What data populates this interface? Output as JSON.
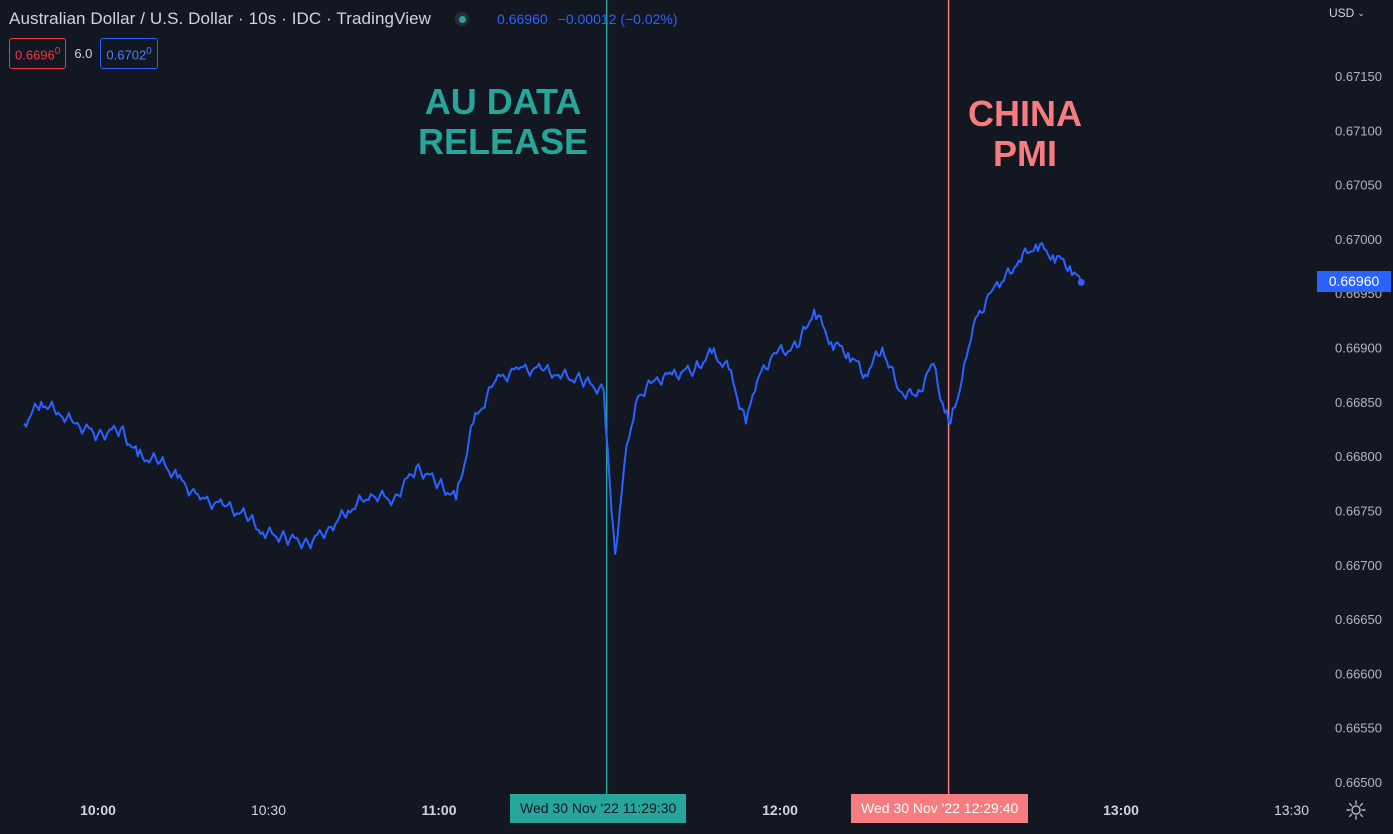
{
  "header": {
    "title": "Australian Dollar / U.S. Dollar · 10s · IDC · TradingView",
    "last_price": "0.66960",
    "change": "−0.00012 (−0.02%)"
  },
  "quote": {
    "sell": "0.6696",
    "sell_sup": "0",
    "spread": "6.0",
    "buy": "0.6702",
    "buy_sup": "0"
  },
  "currency": "USD",
  "events": {
    "au": {
      "line1": "AU DATA",
      "line2": "RELEASE",
      "time_label": "Wed 30 Nov '22   11:29:30",
      "color": "#26a69a"
    },
    "china": {
      "line1": "CHINA",
      "line2": "PMI",
      "time_label": "Wed 30 Nov '22   12:29:40",
      "color": "#f77c80"
    }
  },
  "price_tag": "0.66960",
  "chart_data": {
    "type": "line",
    "series": [
      {
        "color": "#2962ff",
        "x": [
          "09:47",
          "09:50",
          "09:53",
          "09:56",
          "10:00",
          "10:04",
          "10:07",
          "10:11",
          "10:14",
          "10:18",
          "10:22",
          "10:26",
          "10:29",
          "10:33",
          "10:37",
          "10:41",
          "10:44",
          "10:48",
          "10:52",
          "10:56",
          "11:00",
          "11:03",
          "11:06",
          "11:10",
          "11:14",
          "11:18",
          "11:21",
          "11:25",
          "11:29",
          "11:30",
          "11:31",
          "11:33",
          "11:35",
          "11:38",
          "11:41",
          "11:45",
          "11:48",
          "11:51",
          "11:54",
          "11:56",
          "11:59",
          "12:03",
          "12:06",
          "12:09",
          "12:12",
          "12:15",
          "12:18",
          "12:21",
          "12:24",
          "12:27",
          "12:29",
          "12:30",
          "12:32",
          "12:34",
          "12:37",
          "12:39",
          "12:42",
          "12:45",
          "12:48",
          "12:51",
          "12:53"
        ],
        "y": [
          0.6683,
          0.6685,
          0.6684,
          0.6683,
          0.6682,
          0.66825,
          0.668,
          0.66795,
          0.6678,
          0.6676,
          0.66755,
          0.66745,
          0.6673,
          0.66725,
          0.6672,
          0.66735,
          0.6675,
          0.66765,
          0.6676,
          0.6679,
          0.66775,
          0.6676,
          0.6683,
          0.6687,
          0.6688,
          0.6688,
          0.66875,
          0.6687,
          0.6686,
          0.6678,
          0.6671,
          0.6681,
          0.66855,
          0.6687,
          0.66875,
          0.6688,
          0.66895,
          0.6688,
          0.6683,
          0.6687,
          0.66895,
          0.669,
          0.66935,
          0.66905,
          0.66895,
          0.66875,
          0.669,
          0.6686,
          0.66855,
          0.66885,
          0.6684,
          0.6683,
          0.6687,
          0.6692,
          0.6695,
          0.6696,
          0.6698,
          0.66995,
          0.66985,
          0.66975,
          0.6696
        ]
      }
    ],
    "x_ticks": [
      "10:00",
      "10:30",
      "11:00",
      "12:00",
      "13:00",
      "13:30"
    ],
    "x_range": [
      "09:47",
      "13:40"
    ],
    "y_ticks": [
      "0.67150",
      "0.67100",
      "0.67050",
      "0.67000",
      "0.66950",
      "0.66900",
      "0.66850",
      "0.66800",
      "0.66750",
      "0.66700",
      "0.66650",
      "0.66600",
      "0.66550",
      "0.66500"
    ],
    "ylim": [
      0.665,
      0.6715
    ],
    "vertical_markers": [
      {
        "x": "11:29:30",
        "color": "#26a69a"
      },
      {
        "x": "12:29:40",
        "color": "#f77c80"
      }
    ],
    "last_value": 0.6696,
    "grid": false
  }
}
